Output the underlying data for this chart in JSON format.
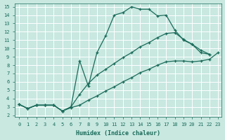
{
  "xlabel": "Humidex (Indice chaleur)",
  "bg_color": "#c8e8e0",
  "grid_color": "#b8d8d0",
  "line_color": "#1a6b5a",
  "xlim_min": -0.5,
  "xlim_max": 23.4,
  "ylim_min": 1.8,
  "ylim_max": 15.4,
  "xticks": [
    0,
    1,
    2,
    3,
    4,
    5,
    6,
    7,
    8,
    9,
    10,
    11,
    12,
    13,
    14,
    15,
    16,
    17,
    18,
    19,
    20,
    21,
    22,
    23
  ],
  "yticks": [
    2,
    3,
    4,
    5,
    6,
    7,
    8,
    9,
    10,
    11,
    12,
    13,
    14,
    15
  ],
  "line1_x": [
    0,
    1,
    2,
    3,
    4,
    5,
    6,
    7,
    8,
    9,
    10,
    11,
    12,
    13,
    14,
    15,
    16,
    17,
    18,
    19,
    20,
    21,
    22
  ],
  "line1_y": [
    3.3,
    2.8,
    3.2,
    3.2,
    3.2,
    2.5,
    3.0,
    8.5,
    5.5,
    9.5,
    11.5,
    14.0,
    14.3,
    15.0,
    14.7,
    14.7,
    13.9,
    14.0,
    12.2,
    11.0,
    10.5,
    9.5,
    9.3
  ],
  "line2_x": [
    0,
    1,
    2,
    3,
    4,
    5,
    6,
    7,
    8,
    9,
    10,
    11,
    12,
    13,
    14,
    15,
    16,
    17,
    18,
    19,
    20,
    21,
    22
  ],
  "line2_y": [
    3.3,
    2.8,
    3.2,
    3.2,
    3.2,
    2.5,
    3.0,
    4.5,
    5.8,
    6.8,
    7.5,
    8.2,
    8.9,
    9.5,
    10.2,
    10.7,
    11.3,
    11.8,
    11.9,
    11.1,
    10.5,
    9.8,
    9.3
  ],
  "line3_x": [
    0,
    1,
    2,
    3,
    4,
    5,
    6,
    7,
    8,
    9,
    10,
    11,
    12,
    13,
    14,
    15,
    16,
    17,
    18,
    19,
    20,
    21,
    22,
    23
  ],
  "line3_y": [
    3.3,
    2.8,
    3.2,
    3.2,
    3.2,
    2.5,
    2.9,
    3.2,
    3.8,
    4.3,
    4.9,
    5.4,
    6.0,
    6.5,
    7.1,
    7.5,
    8.0,
    8.4,
    8.5,
    8.5,
    8.4,
    8.5,
    8.7,
    9.5
  ]
}
